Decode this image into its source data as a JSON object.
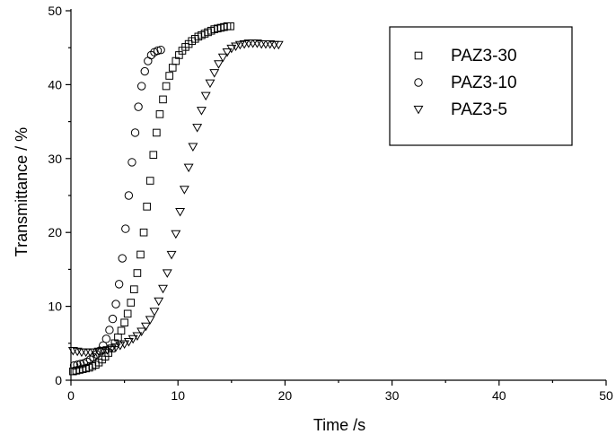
{
  "chart_data": {
    "type": "scatter",
    "xlabel": "Time /s",
    "ylabel": "Transmittance / %",
    "xlim": [
      0,
      50
    ],
    "ylim": [
      0,
      50
    ],
    "xticks": [
      0,
      10,
      20,
      30,
      40,
      50
    ],
    "yticks": [
      0,
      10,
      20,
      30,
      40,
      50
    ],
    "grid": false,
    "legend_position": "top-right",
    "series": [
      {
        "name": "PAZ3-30",
        "marker": "square",
        "color": "#000000",
        "x": [
          0.2,
          0.5,
          0.8,
          1.1,
          1.4,
          1.7,
          2.0,
          2.3,
          2.6,
          2.9,
          3.2,
          3.5,
          3.8,
          4.1,
          4.4,
          4.7,
          5.0,
          5.3,
          5.6,
          5.9,
          6.2,
          6.5,
          6.8,
          7.1,
          7.4,
          7.7,
          8.0,
          8.3,
          8.6,
          8.9,
          9.2,
          9.5,
          9.8,
          10.1,
          10.4,
          10.7,
          11.0,
          11.3,
          11.6,
          11.9,
          12.2,
          12.5,
          12.8,
          13.1,
          13.4,
          13.7,
          14.0,
          14.3,
          14.6,
          14.9
        ],
        "y": [
          1.2,
          1.3,
          1.4,
          1.5,
          1.6,
          1.7,
          1.9,
          2.1,
          2.4,
          2.8,
          3.2,
          3.7,
          4.3,
          5.0,
          5.8,
          6.7,
          7.8,
          9.0,
          10.5,
          12.3,
          14.5,
          17.0,
          20.0,
          23.5,
          27.0,
          30.5,
          33.5,
          36.0,
          38.0,
          39.8,
          41.2,
          42.3,
          43.2,
          44.0,
          44.6,
          45.1,
          45.5,
          45.9,
          46.2,
          46.5,
          46.7,
          46.9,
          47.1,
          47.3,
          47.5,
          47.6,
          47.7,
          47.8,
          47.9,
          47.9
        ]
      },
      {
        "name": "PAZ3-10",
        "marker": "circle",
        "color": "#000000",
        "x": [
          0.3,
          0.6,
          0.9,
          1.2,
          1.5,
          1.8,
          2.1,
          2.4,
          2.7,
          3.0,
          3.3,
          3.6,
          3.9,
          4.2,
          4.5,
          4.8,
          5.1,
          5.4,
          5.7,
          6.0,
          6.3,
          6.6,
          6.9,
          7.2,
          7.5,
          7.8,
          8.1,
          8.4
        ],
        "y": [
          2.0,
          2.1,
          2.2,
          2.3,
          2.5,
          2.8,
          3.1,
          3.5,
          4.0,
          4.7,
          5.6,
          6.8,
          8.3,
          10.3,
          13.0,
          16.5,
          20.5,
          25.0,
          29.5,
          33.5,
          37.0,
          39.8,
          41.8,
          43.2,
          44.0,
          44.4,
          44.6,
          44.7
        ]
      },
      {
        "name": "PAZ3-5",
        "marker": "triangle-down",
        "color": "#000000",
        "x": [
          0.2,
          0.6,
          1.0,
          1.4,
          1.8,
          2.2,
          2.6,
          3.0,
          3.4,
          3.8,
          4.2,
          4.6,
          5.0,
          5.4,
          5.8,
          6.2,
          6.6,
          7.0,
          7.4,
          7.8,
          8.2,
          8.6,
          9.0,
          9.4,
          9.8,
          10.2,
          10.6,
          11.0,
          11.4,
          11.8,
          12.2,
          12.6,
          13.0,
          13.4,
          13.8,
          14.2,
          14.6,
          15.0,
          15.4,
          15.8,
          16.2,
          16.6,
          17.0,
          17.4,
          17.8,
          18.2,
          18.6,
          19.0,
          19.4
        ],
        "y": [
          4.0,
          3.9,
          3.8,
          3.8,
          3.8,
          3.8,
          3.9,
          4.0,
          4.1,
          4.3,
          4.5,
          4.7,
          4.9,
          5.2,
          5.6,
          6.0,
          6.6,
          7.3,
          8.2,
          9.3,
          10.7,
          12.4,
          14.5,
          17.0,
          19.8,
          22.8,
          25.8,
          28.8,
          31.6,
          34.2,
          36.5,
          38.5,
          40.2,
          41.6,
          42.8,
          43.7,
          44.4,
          44.9,
          45.2,
          45.4,
          45.5,
          45.6,
          45.6,
          45.6,
          45.5,
          45.5,
          45.5,
          45.4,
          45.4
        ]
      }
    ]
  }
}
